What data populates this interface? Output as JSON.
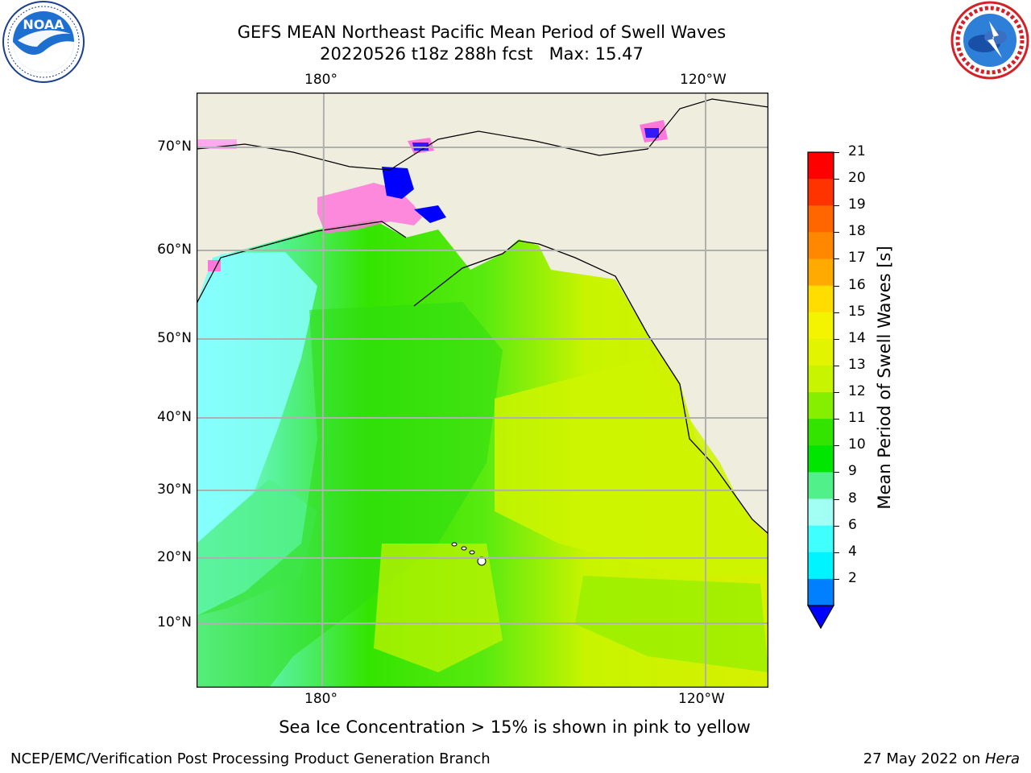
{
  "header": {
    "title_line1": "GEFS MEAN Northeast Pacific Mean Period of Swell Waves",
    "title_line2": "20220526 t18z 288h fcst   Max: 15.47"
  },
  "logos": {
    "left": {
      "name": "NOAA",
      "ring_text": "NATIONAL OCEANIC AND ATMOSPHERIC ADMINISTRATION",
      "bottom_text": "U.S. DEPARTMENT OF COMMERCE"
    },
    "right": {
      "name": "NATIONAL WEATHER SERVICE"
    }
  },
  "map": {
    "lon_top": [
      "180°",
      "120°W"
    ],
    "lon_bottom": [
      "180°",
      "120°W"
    ],
    "lat_labels": [
      "70°N",
      "60°N",
      "50°N",
      "40°N",
      "30°N",
      "20°N",
      "10°N"
    ],
    "land_color": "#efedde",
    "grid_color": "#b0b0b0",
    "ice_note": "Sea Ice Concentration > 15% is shown in pink to yellow"
  },
  "colorbar": {
    "label": "Mean Period of Swell Waves [s]",
    "ticks": [
      "21",
      "20",
      "19",
      "18",
      "17",
      "16",
      "15",
      "14",
      "13",
      "12",
      "11",
      "10",
      "9",
      "8",
      "6",
      "4",
      "2"
    ],
    "colors_top_to_bottom": [
      "#ff0000",
      "#ff3300",
      "#ff6600",
      "#ff8800",
      "#ffaa00",
      "#ffdd00",
      "#f4f400",
      "#e2f400",
      "#c8f400",
      "#86ef00",
      "#32e400",
      "#00e600",
      "#52f08a",
      "#a2fff4",
      "#40ffff",
      "#00f4ff",
      "#0080ff"
    ],
    "underflow_color": "#0000ff"
  },
  "footer": {
    "left": "NCEP/EMC/Verification Post Processing Product Generation Branch",
    "right_date": "27 May 2022 on ",
    "right_host": "Hera"
  }
}
